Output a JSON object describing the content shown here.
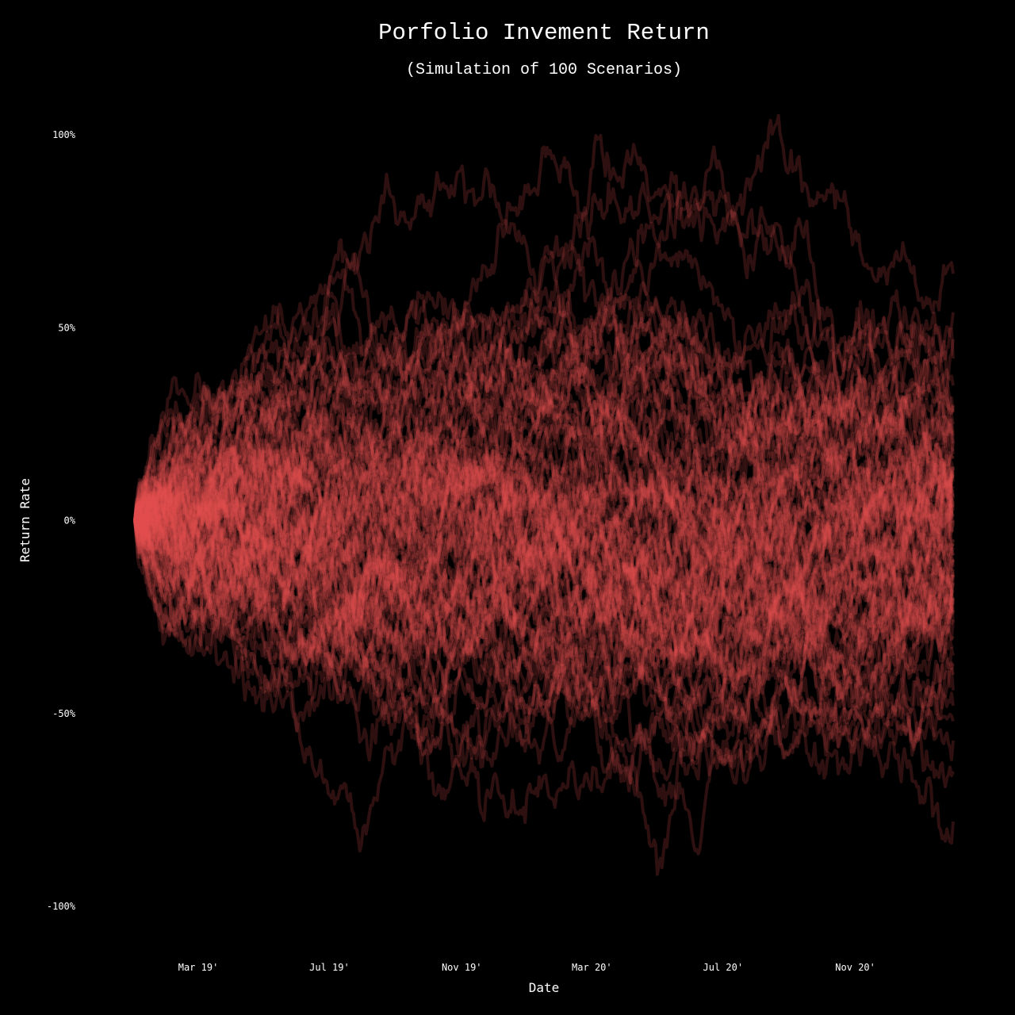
{
  "chart_data": {
    "type": "line",
    "title": "Porfolio Invement Return",
    "subtitle": "(Simulation of 100 Scenarios)",
    "xlabel": "Date",
    "ylabel": "Return Rate",
    "x_range": [
      "2019-01-01",
      "2021-01-31"
    ],
    "x_ticks": [
      {
        "date": "2019-03-01",
        "label": "Mar 19'"
      },
      {
        "date": "2019-07-01",
        "label": "Jul 19'"
      },
      {
        "date": "2019-11-01",
        "label": "Nov 19'"
      },
      {
        "date": "2020-03-01",
        "label": "Mar 20'"
      },
      {
        "date": "2020-07-01",
        "label": "Jul 20'"
      },
      {
        "date": "2020-11-01",
        "label": "Nov 20'"
      }
    ],
    "ylim": [
      -1.0,
      1.0
    ],
    "y_ticks": [
      {
        "value": 1.0,
        "label": "100%"
      },
      {
        "value": 0.5,
        "label": "50%"
      },
      {
        "value": 0.0,
        "label": "0%"
      },
      {
        "value": -0.5,
        "label": "-50%"
      },
      {
        "value": -1.0,
        "label": "-100%"
      }
    ],
    "grid": false,
    "scenario_count": 100,
    "start_value": 0.0,
    "scenario_final_returns": [
      0.64,
      0.54,
      0.47,
      0.42,
      0.35,
      0.3,
      0.28,
      0.25,
      0.22,
      0.2,
      0.18,
      0.16,
      0.14,
      0.12,
      0.1,
      0.08,
      0.06,
      0.05,
      0.03,
      0.02,
      0.0,
      -0.01,
      -0.03,
      -0.05,
      -0.07,
      -0.09,
      -0.1,
      -0.12,
      -0.14,
      -0.16,
      -0.18,
      -0.2,
      -0.23,
      -0.26,
      -0.3,
      -0.33,
      -0.37,
      -0.4,
      -0.44,
      -0.48,
      -0.52,
      -0.57,
      -0.65,
      -0.78
    ],
    "colors": {
      "background": "#000000",
      "line": "#e8504e",
      "text": "#ffffff"
    }
  }
}
